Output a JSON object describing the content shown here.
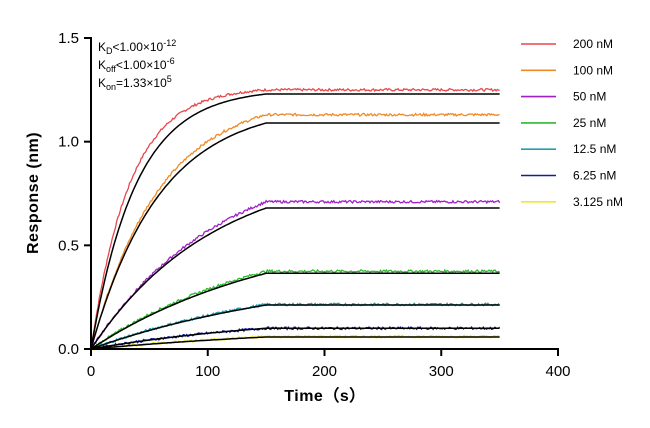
{
  "chart_data": {
    "type": "line",
    "title": "",
    "xlabel": "Time（s）",
    "ylabel": "Response (nm)",
    "xlim": [
      0,
      400
    ],
    "ylim": [
      0,
      1.5
    ],
    "xticks": [
      0,
      100,
      200,
      300,
      400
    ],
    "yticks": [
      0.0,
      0.5,
      1.0,
      1.5
    ],
    "xtick_labels": [
      "0",
      "100",
      "200",
      "300",
      "400"
    ],
    "ytick_labels": [
      "0.0",
      "0.5",
      "1.0",
      "1.5"
    ],
    "grid": false,
    "legend_position": "right",
    "association_end": 150,
    "dissociation_end": 350,
    "annotations": {
      "kd_main": "K",
      "kd_sub": "D",
      "kd_value": "<1.00×10",
      "kd_exp": "-12",
      "koff_main": "K",
      "koff_sub": "off",
      "koff_value": "<1.00×10",
      "koff_exp": "-6",
      "kon_main": "K",
      "kon_sub": "on",
      "kon_value": "=1.33×10",
      "kon_exp": "5"
    },
    "fit_color": "#000000",
    "series": [
      {
        "name": "200 nM",
        "color": "#e8474b",
        "plateau": 1.25,
        "fit_plateau": 1.23,
        "k": 0.03,
        "fit_k": 0.026
      },
      {
        "name": "100 nM",
        "color": "#f08a24",
        "plateau": 1.13,
        "fit_plateau": 1.09,
        "k": 0.017,
        "fit_k": 0.017
      },
      {
        "name": "50 nM",
        "color": "#a020c8",
        "plateau": 0.71,
        "fit_plateau": 0.68,
        "k": 0.009,
        "fit_k": 0.0095
      },
      {
        "name": "25 nM",
        "color": "#2eb82e",
        "plateau": 0.375,
        "fit_plateau": 0.365,
        "k": 0.0065,
        "fit_k": 0.0062
      },
      {
        "name": "12.5 nM",
        "color": "#22a0b0",
        "plateau": 0.215,
        "fit_plateau": 0.212,
        "k": 0.0055,
        "fit_k": 0.0052
      },
      {
        "name": "6.25 nM",
        "color": "#101d9c",
        "plateau": 0.1,
        "fit_plateau": 0.1,
        "k": 0.006,
        "fit_k": 0.0058
      },
      {
        "name": "3.125 nM",
        "color": "#f2e82a",
        "plateau": 0.06,
        "fit_plateau": 0.058,
        "k": 0.004,
        "fit_k": 0.004
      }
    ]
  }
}
